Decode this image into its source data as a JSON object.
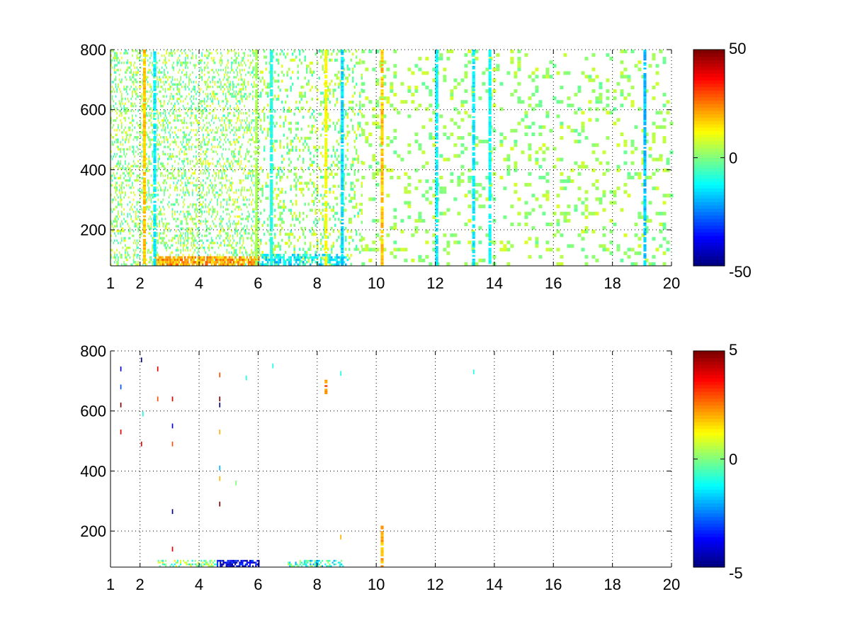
{
  "chart_data": [
    {
      "type": "heatmap",
      "title": "",
      "xlabel": "",
      "ylabel": "",
      "xlim": [
        1,
        20
      ],
      "ylim": [
        80,
        800
      ],
      "x_ticks": [
        1,
        2,
        4,
        6,
        8,
        10,
        12,
        14,
        16,
        18,
        20
      ],
      "x_tick_labels": [
        "1",
        "2",
        "4",
        "6",
        "8",
        "10",
        "12",
        "14",
        "16",
        "18",
        "20"
      ],
      "y_ticks": [
        200,
        400,
        600,
        800
      ],
      "y_tick_labels": [
        "200",
        "400",
        "600",
        "800"
      ],
      "grid": true,
      "colorbar": {
        "colormap": "jet",
        "clim": [
          -50,
          50
        ],
        "ticks": [
          -50,
          0,
          50
        ],
        "tick_labels": [
          "-50",
          "0",
          "50"
        ]
      },
      "bands": [
        {
          "x": [
            1.0,
            6.0
          ],
          "y": [
            80,
            800
          ],
          "density": 0.3,
          "mean": 2,
          "spread": 10,
          "dx": 0.04,
          "dy": 8
        },
        {
          "x": [
            6.0,
            9.5
          ],
          "y": [
            80,
            800
          ],
          "density": 0.22,
          "mean": 2,
          "spread": 9,
          "dx": 0.06,
          "dy": 10
        },
        {
          "x": [
            9.5,
            20.0
          ],
          "y": [
            80,
            800
          ],
          "density": 0.16,
          "mean": 3,
          "spread": 6,
          "dx": 0.12,
          "dy": 12
        },
        {
          "x": [
            2.5,
            6.0
          ],
          "y": [
            80,
            105
          ],
          "density": 0.85,
          "mean": 22,
          "spread": 8,
          "dx": 0.05,
          "dy": 8
        },
        {
          "x": [
            6.0,
            9.0
          ],
          "y": [
            80,
            120
          ],
          "density": 0.55,
          "mean": -14,
          "spread": 8,
          "dx": 0.06,
          "dy": 8
        }
      ],
      "columns": [
        {
          "x": 2.15,
          "y": [
            80,
            800
          ],
          "value": 18
        },
        {
          "x": 2.5,
          "y": [
            80,
            800
          ],
          "value": -14
        },
        {
          "x": 5.95,
          "y": [
            80,
            800
          ],
          "value": 4
        },
        {
          "x": 6.45,
          "y": [
            80,
            800
          ],
          "value": -10
        },
        {
          "x": 8.3,
          "y": [
            80,
            800
          ],
          "value": 12
        },
        {
          "x": 8.85,
          "y": [
            80,
            800
          ],
          "value": -16
        },
        {
          "x": 10.2,
          "y": [
            80,
            800
          ],
          "value": 18
        },
        {
          "x": 12.05,
          "y": [
            80,
            800
          ],
          "value": -14
        },
        {
          "x": 13.3,
          "y": [
            80,
            800
          ],
          "value": -14
        },
        {
          "x": 13.85,
          "y": [
            80,
            800
          ],
          "value": -12
        },
        {
          "x": 19.1,
          "y": [
            80,
            800
          ],
          "value": -18
        }
      ]
    },
    {
      "type": "heatmap",
      "title": "",
      "xlabel": "",
      "ylabel": "",
      "xlim": [
        1,
        20
      ],
      "ylim": [
        80,
        800
      ],
      "x_ticks": [
        1,
        2,
        4,
        6,
        8,
        10,
        12,
        14,
        16,
        18,
        20
      ],
      "x_tick_labels": [
        "1",
        "2",
        "4",
        "6",
        "8",
        "10",
        "12",
        "14",
        "16",
        "18",
        "20"
      ],
      "y_ticks": [
        200,
        400,
        600,
        800
      ],
      "y_tick_labels": [
        "200",
        "400",
        "600",
        "800"
      ],
      "grid": true,
      "colorbar": {
        "colormap": "jet",
        "clim": [
          -5,
          5
        ],
        "ticks": [
          -5,
          0,
          5
        ],
        "tick_labels": [
          "-5",
          "0",
          "5"
        ]
      },
      "bands": [
        {
          "x": [
            2.6,
            4.6
          ],
          "y": [
            80,
            100
          ],
          "density": 0.45,
          "mean": 0,
          "spread": 1.5,
          "dx": 0.05,
          "dy": 6
        },
        {
          "x": [
            4.6,
            6.0
          ],
          "y": [
            80,
            100
          ],
          "density": 0.7,
          "mean": -4,
          "spread": 1,
          "dx": 0.05,
          "dy": 6
        },
        {
          "x": [
            7.0,
            8.9
          ],
          "y": [
            80,
            100
          ],
          "density": 0.45,
          "mean": -1,
          "spread": 1.5,
          "dx": 0.05,
          "dy": 6
        }
      ],
      "columns": [
        {
          "x": 10.2,
          "y": [
            80,
            215
          ],
          "value": 2
        },
        {
          "x": 8.3,
          "y": [
            650,
            700
          ],
          "value": 2.5
        }
      ],
      "points": [
        {
          "x": 1.35,
          "y": 740,
          "value": -4
        },
        {
          "x": 1.35,
          "y": 680,
          "value": -3
        },
        {
          "x": 1.35,
          "y": 620,
          "value": 5
        },
        {
          "x": 1.35,
          "y": 530,
          "value": 4
        },
        {
          "x": 2.05,
          "y": 770,
          "value": -5
        },
        {
          "x": 2.05,
          "y": 490,
          "value": 4
        },
        {
          "x": 2.1,
          "y": 590,
          "value": -1
        },
        {
          "x": 2.6,
          "y": 740,
          "value": 4
        },
        {
          "x": 2.6,
          "y": 640,
          "value": 3
        },
        {
          "x": 3.1,
          "y": 640,
          "value": 4
        },
        {
          "x": 3.1,
          "y": 550,
          "value": -4
        },
        {
          "x": 3.1,
          "y": 490,
          "value": 3
        },
        {
          "x": 3.1,
          "y": 265,
          "value": -5
        },
        {
          "x": 3.1,
          "y": 140,
          "value": 4
        },
        {
          "x": 4.7,
          "y": 720,
          "value": 3
        },
        {
          "x": 4.7,
          "y": 640,
          "value": 5
        },
        {
          "x": 4.7,
          "y": 620,
          "value": -5
        },
        {
          "x": 4.7,
          "y": 530,
          "value": 2
        },
        {
          "x": 4.7,
          "y": 410,
          "value": -2
        },
        {
          "x": 4.7,
          "y": 375,
          "value": 2
        },
        {
          "x": 4.7,
          "y": 290,
          "value": 5
        },
        {
          "x": 5.6,
          "y": 710,
          "value": -1
        },
        {
          "x": 5.25,
          "y": 360,
          "value": 0
        },
        {
          "x": 6.5,
          "y": 750,
          "value": -1
        },
        {
          "x": 8.8,
          "y": 725,
          "value": -1
        },
        {
          "x": 8.8,
          "y": 180,
          "value": 2
        },
        {
          "x": 13.3,
          "y": 730,
          "value": -1
        }
      ]
    }
  ]
}
